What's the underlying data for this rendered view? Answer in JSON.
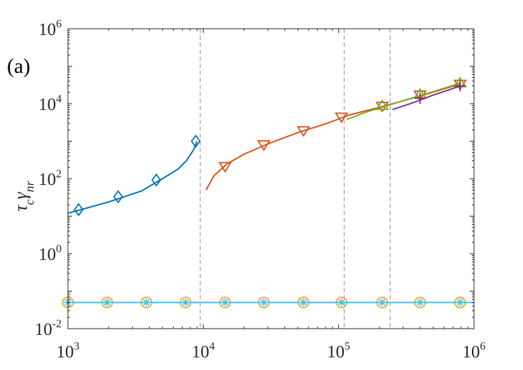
{
  "chart_data": {
    "type": "line",
    "panel_label": "(a)",
    "ylabel": "τ_c γ_nr",
    "xscale": "log",
    "yscale": "log",
    "xlim": [
      1000,
      1000000
    ],
    "ylim": [
      0.01,
      1000000
    ],
    "x_ticks": [
      {
        "base": "10",
        "exp": "3",
        "value": 1000
      },
      {
        "base": "10",
        "exp": "4",
        "value": 10000
      },
      {
        "base": "10",
        "exp": "5",
        "value": 100000
      },
      {
        "base": "10",
        "exp": "6",
        "value": 1000000
      }
    ],
    "y_ticks": [
      {
        "base": "10",
        "exp": "-2",
        "value": 0.01
      },
      {
        "base": "10",
        "exp": "0",
        "value": 1
      },
      {
        "base": "10",
        "exp": "2",
        "value": 100
      },
      {
        "base": "10",
        "exp": "4",
        "value": 10000
      },
      {
        "base": "10",
        "exp": "6",
        "value": 1000000
      }
    ],
    "vertical_dashed_lines_x": [
      9500,
      110000,
      240000
    ],
    "grid": false,
    "colors": {
      "blue": "#0072BD",
      "orange": "#D95319",
      "yellow": "#EDB120",
      "purple": "#7E2F8E",
      "green": "#77AC30",
      "cyan": "#4DBEEE",
      "dashed": "#8c8c8c"
    },
    "series": [
      {
        "color": "#0072BD",
        "marker": "diamond",
        "points": [
          [
            1200,
            15
          ],
          [
            2350,
            33
          ],
          [
            4500,
            92
          ],
          [
            8800,
            1000
          ]
        ],
        "curve": [
          [
            1000,
            12
          ],
          [
            2000,
            24
          ],
          [
            3500,
            47
          ],
          [
            5000,
            100
          ],
          [
            6500,
            180
          ],
          [
            7500,
            300
          ],
          [
            8500,
            600
          ],
          [
            9000,
            1000
          ]
        ]
      },
      {
        "color": "#D95319",
        "marker": "triangle-down",
        "points": [
          [
            14500,
            210
          ],
          [
            28000,
            800
          ],
          [
            55000,
            1900
          ],
          [
            105000,
            4400
          ],
          [
            210000,
            8500
          ],
          [
            400000,
            17000
          ],
          [
            790000,
            33000
          ]
        ],
        "curve": [
          [
            10500,
            50
          ],
          [
            12000,
            120
          ],
          [
            15000,
            250
          ],
          [
            20000,
            450
          ],
          [
            30000,
            850
          ],
          [
            50000,
            1700
          ],
          [
            80000,
            2900
          ],
          [
            120000,
            5000
          ],
          [
            200000,
            8000
          ],
          [
            400000,
            16000
          ],
          [
            800000,
            34000
          ]
        ]
      },
      {
        "color": "#77AC30",
        "marker": "triangle-up",
        "points": [
          [
            210000,
            9000
          ],
          [
            400000,
            18000
          ],
          [
            790000,
            36000
          ]
        ],
        "curve": [
          [
            115000,
            3800
          ],
          [
            160000,
            6000
          ],
          [
            220000,
            8500
          ],
          [
            320000,
            13000
          ],
          [
            500000,
            21000
          ],
          [
            800000,
            36000
          ]
        ]
      },
      {
        "color": "#7E2F8E",
        "marker": "plus",
        "points": [
          [
            400000,
            14000
          ],
          [
            790000,
            30000
          ]
        ],
        "curve": [
          [
            250000,
            7000
          ],
          [
            350000,
            10500
          ],
          [
            500000,
            17000
          ],
          [
            800000,
            30000
          ]
        ]
      },
      {
        "color": "#EDB120",
        "marker": "circle",
        "points": [
          [
            1000,
            0.05
          ],
          [
            1950,
            0.05
          ],
          [
            3800,
            0.05
          ],
          [
            7400,
            0.05
          ],
          [
            14500,
            0.05
          ],
          [
            28000,
            0.05
          ],
          [
            55000,
            0.05
          ],
          [
            105000,
            0.05
          ],
          [
            210000,
            0.05
          ],
          [
            400000,
            0.05
          ],
          [
            790000,
            0.05
          ]
        ],
        "curve": [
          [
            1000,
            0.05
          ],
          [
            1000000,
            0.05
          ]
        ]
      },
      {
        "color": "#4DBEEE",
        "marker": "asterisk",
        "points": [
          [
            1000,
            0.05
          ],
          [
            1950,
            0.05
          ],
          [
            3800,
            0.05
          ],
          [
            7400,
            0.05
          ],
          [
            14500,
            0.05
          ],
          [
            28000,
            0.05
          ],
          [
            55000,
            0.05
          ],
          [
            105000,
            0.05
          ],
          [
            210000,
            0.05
          ],
          [
            400000,
            0.05
          ],
          [
            790000,
            0.05
          ]
        ],
        "curve": [
          [
            1000,
            0.05
          ],
          [
            1000000,
            0.05
          ]
        ]
      }
    ]
  }
}
